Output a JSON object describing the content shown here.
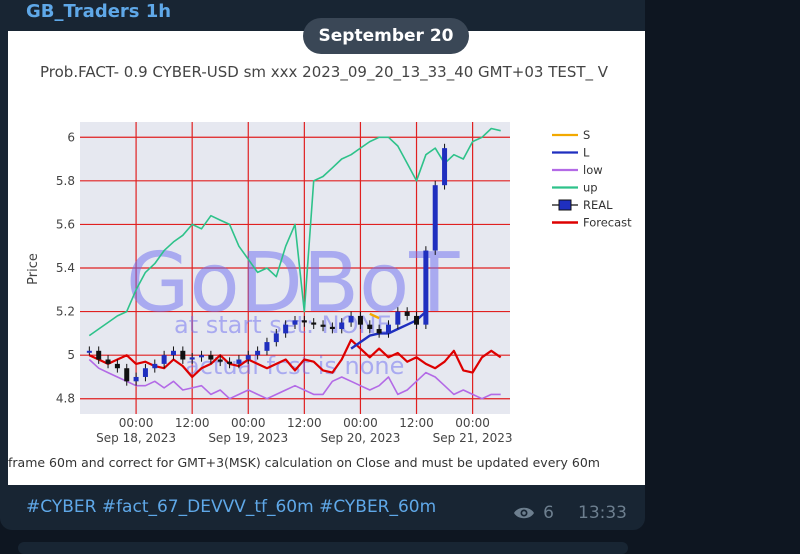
{
  "channel": {
    "name": "GB_Traders 1h"
  },
  "date_badge": "September 20",
  "chart_title": "Prob.FACT- 0.9 CYBER-USD sm xxx 2023_09_20_13_33_40 GMT+03 TEST_ V",
  "chart_footer": "frame 60m and correct for GMT+3(MSK) calculation on Close and must be updated every 60m",
  "watermark": {
    "main": "GoDBoT",
    "line1": "at start set: NONE",
    "line2": "actual fcst is none"
  },
  "message": {
    "caption": "#CYBER #fact_67_DEVVV_tf_60m #CYBER_60m",
    "views": "6",
    "time": "13:33"
  },
  "colors": {
    "S": "#f2a900",
    "L": "#1f2fbf",
    "low": "#b36ae6",
    "up": "#2ec28a",
    "REAL": "#1f2fbf",
    "Forecast": "#dd0000"
  },
  "chart_data": {
    "type": "line",
    "ylabel": "Price",
    "ylim": [
      4.73,
      6.07
    ],
    "yticks": [
      "6",
      "5.8",
      "5.6",
      "5.4",
      "5.2",
      "5",
      "4.8"
    ],
    "xticks": [
      {
        "time": "00:00",
        "date": "Sep 18, 2023"
      },
      {
        "time": "12:00",
        "date": ""
      },
      {
        "time": "00:00",
        "date": "Sep 19, 2023"
      },
      {
        "time": "12:00",
        "date": ""
      },
      {
        "time": "00:00",
        "date": "Sep 20, 2023"
      },
      {
        "time": "12:00",
        "date": ""
      },
      {
        "time": "00:00",
        "date": "Sep 21, 2023"
      }
    ],
    "legend": [
      "S",
      "L",
      "low",
      "up",
      "REAL",
      "Forecast"
    ],
    "legend_position": "right",
    "grid": true,
    "x_hours": [
      -10,
      -8,
      -6,
      -4,
      -2,
      0,
      2,
      4,
      6,
      8,
      10,
      12,
      14,
      16,
      18,
      20,
      22,
      24,
      26,
      28,
      30,
      32,
      34,
      36,
      38,
      40,
      42,
      44,
      46,
      48,
      50,
      52,
      54,
      56,
      58,
      60,
      62,
      64,
      66,
      68,
      70,
      72,
      74,
      76,
      78
    ],
    "series": [
      {
        "name": "up",
        "values": [
          5.09,
          5.12,
          5.15,
          5.18,
          5.2,
          5.3,
          5.38,
          5.42,
          5.48,
          5.52,
          5.55,
          5.6,
          5.58,
          5.64,
          5.62,
          5.6,
          5.5,
          5.44,
          5.38,
          5.4,
          5.36,
          5.5,
          5.6,
          5.2,
          5.8,
          5.82,
          5.86,
          5.9,
          5.92,
          5.95,
          5.98,
          6.0,
          6.0,
          5.96,
          5.88,
          5.8,
          5.92,
          5.95,
          5.88,
          5.92,
          5.9,
          5.98,
          6.0,
          6.04,
          6.03
        ]
      },
      {
        "name": "low",
        "values": [
          4.98,
          4.94,
          4.92,
          4.9,
          4.88,
          4.86,
          4.86,
          4.88,
          4.85,
          4.88,
          4.84,
          4.85,
          4.86,
          4.82,
          4.84,
          4.8,
          4.82,
          4.84,
          4.82,
          4.8,
          4.82,
          4.84,
          4.86,
          4.84,
          4.82,
          4.82,
          4.88,
          4.9,
          4.88,
          4.86,
          4.84,
          4.86,
          4.9,
          4.82,
          4.84,
          4.88,
          4.92,
          4.9,
          4.86,
          4.82,
          4.84,
          4.82,
          4.8,
          4.82,
          4.82
        ]
      },
      {
        "name": "Forecast",
        "values": [
          5.0,
          4.98,
          4.96,
          4.98,
          5.0,
          4.96,
          4.97,
          4.95,
          4.94,
          4.98,
          4.95,
          4.9,
          4.94,
          4.96,
          5.0,
          4.96,
          4.95,
          4.98,
          4.96,
          4.94,
          4.96,
          4.98,
          4.93,
          4.98,
          4.97,
          4.93,
          4.92,
          4.98,
          5.07,
          5.03,
          4.99,
          5.03,
          4.99,
          5.01,
          4.97,
          4.99,
          4.96,
          4.94,
          4.97,
          5.02,
          4.93,
          4.92,
          4.99,
          5.02,
          4.99
        ]
      },
      {
        "name": "L",
        "values": [
          null,
          null,
          null,
          null,
          null,
          null,
          null,
          null,
          null,
          null,
          null,
          null,
          null,
          null,
          null,
          null,
          null,
          null,
          null,
          null,
          null,
          null,
          null,
          null,
          null,
          null,
          null,
          null,
          5.03,
          5.06,
          5.09,
          5.1,
          5.1,
          5.12,
          5.14,
          5.16,
          5.2,
          null,
          null,
          null,
          null,
          null,
          null,
          null,
          null
        ]
      },
      {
        "name": "S",
        "values": [
          null,
          null,
          null,
          null,
          null,
          null,
          null,
          null,
          null,
          null,
          null,
          null,
          null,
          null,
          null,
          null,
          null,
          null,
          null,
          null,
          null,
          null,
          null,
          null,
          null,
          null,
          null,
          null,
          null,
          null,
          5.19,
          5.17,
          null,
          null,
          null,
          null,
          null,
          null,
          null,
          null,
          null,
          null,
          null,
          null,
          null
        ]
      },
      {
        "name": "REAL",
        "values": [
          5.02,
          4.98,
          4.96,
          4.94,
          4.88,
          4.9,
          4.94,
          4.96,
          5.0,
          5.02,
          4.98,
          4.99,
          5.0,
          4.98,
          4.97,
          4.96,
          4.98,
          5.0,
          5.02,
          5.06,
          5.1,
          5.14,
          5.16,
          5.15,
          5.14,
          5.13,
          5.12,
          5.15,
          5.18,
          5.14,
          5.12,
          5.1,
          5.14,
          5.2,
          5.18,
          5.14,
          5.48,
          5.78,
          5.95,
          null,
          null,
          null,
          null,
          null,
          null
        ]
      }
    ]
  }
}
